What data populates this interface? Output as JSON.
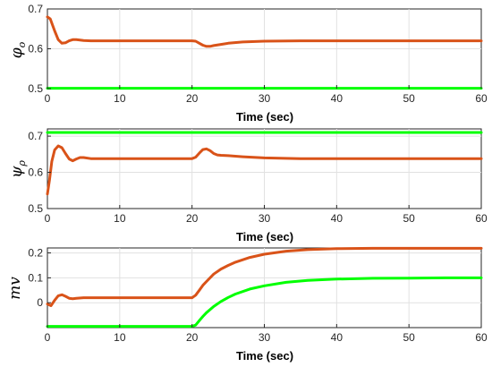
{
  "colors": {
    "orange": "#D95319",
    "green": "#00FF00"
  },
  "chart_data": [
    {
      "type": "line",
      "xlabel": "Time (sec)",
      "ylabel_main": "φ",
      "ylabel_sub": "o",
      "xlim": [
        0,
        60
      ],
      "ylim": [
        0.5,
        0.7
      ],
      "xticks": [
        "0",
        "10",
        "20",
        "30",
        "40",
        "50",
        "60"
      ],
      "yticks": [
        "0.5",
        "0.6",
        "0.7"
      ],
      "ytick_values": [
        0.5,
        0.6,
        0.7
      ],
      "grid": true,
      "series": [
        {
          "color": "#D95319",
          "x": [
            0,
            0.4,
            1,
            1.5,
            2,
            2.5,
            3,
            3.5,
            4,
            5,
            6,
            8,
            20,
            20.5,
            21,
            21.5,
            22,
            22.5,
            23,
            24,
            25,
            27,
            30,
            35,
            40,
            50,
            60
          ],
          "y": [
            0.68,
            0.675,
            0.645,
            0.623,
            0.614,
            0.615,
            0.62,
            0.623,
            0.623,
            0.621,
            0.62,
            0.62,
            0.62,
            0.619,
            0.614,
            0.609,
            0.606,
            0.606,
            0.608,
            0.611,
            0.614,
            0.617,
            0.619,
            0.62,
            0.62,
            0.62,
            0.62
          ]
        },
        {
          "color": "#00FF00",
          "x": [
            0,
            60
          ],
          "y": [
            0.5,
            0.5
          ]
        }
      ]
    },
    {
      "type": "line",
      "xlabel": "Time (sec)",
      "ylabel_main": "ψ",
      "ylabel_sub": "ρ",
      "xlim": [
        0,
        60
      ],
      "ylim": [
        0.5,
        0.72
      ],
      "xticks": [
        "0",
        "10",
        "20",
        "30",
        "40",
        "50",
        "60"
      ],
      "yticks": [
        "0.5",
        "0.6",
        "0.7"
      ],
      "ytick_values": [
        0.5,
        0.6,
        0.7
      ],
      "grid": true,
      "series": [
        {
          "color": "#D95319",
          "x": [
            0,
            0.3,
            0.6,
            1,
            1.5,
            2,
            2.5,
            3,
            3.5,
            4,
            4.5,
            5,
            6,
            8,
            10,
            20,
            20.5,
            21,
            21.5,
            22,
            22.5,
            23,
            23.5,
            24,
            25,
            27,
            30,
            35,
            40,
            50,
            60
          ],
          "y": [
            0.54,
            0.58,
            0.63,
            0.662,
            0.673,
            0.668,
            0.652,
            0.637,
            0.632,
            0.637,
            0.641,
            0.641,
            0.638,
            0.638,
            0.638,
            0.638,
            0.642,
            0.653,
            0.663,
            0.665,
            0.66,
            0.652,
            0.648,
            0.647,
            0.646,
            0.643,
            0.64,
            0.638,
            0.638,
            0.638,
            0.638
          ]
        },
        {
          "color": "#00FF00",
          "x": [
            0,
            60
          ],
          "y": [
            0.71,
            0.71
          ]
        }
      ]
    },
    {
      "type": "line",
      "xlabel": "Time (sec)",
      "ylabel_main": "mv",
      "ylabel_sub": "",
      "xlim": [
        0,
        60
      ],
      "ylim": [
        -0.1,
        0.22
      ],
      "xticks": [
        "0",
        "10",
        "20",
        "30",
        "40",
        "50",
        "60"
      ],
      "yticks": [
        "0",
        "0.1",
        "0.2"
      ],
      "ytick_values": [
        0,
        0.1,
        0.2
      ],
      "grid": true,
      "series": [
        {
          "color": "#D95319",
          "x": [
            0,
            0.5,
            1,
            1.5,
            2,
            2.5,
            3,
            3.5,
            4,
            5,
            6,
            8,
            10,
            15,
            20,
            20.5,
            21,
            21.5,
            22,
            23,
            24,
            25,
            26,
            28,
            30,
            33,
            36,
            40,
            45,
            50,
            55,
            60
          ],
          "y": [
            -0.005,
            -0.012,
            0.01,
            0.028,
            0.032,
            0.026,
            0.018,
            0.016,
            0.018,
            0.02,
            0.02,
            0.02,
            0.02,
            0.02,
            0.02,
            0.03,
            0.05,
            0.07,
            0.085,
            0.115,
            0.135,
            0.15,
            0.163,
            0.182,
            0.195,
            0.207,
            0.213,
            0.217,
            0.219,
            0.219,
            0.219,
            0.219
          ]
        },
        {
          "color": "#00FF00",
          "x": [
            0,
            20,
            20.5,
            21,
            21.5,
            22,
            23,
            24,
            25,
            26,
            28,
            30,
            33,
            36,
            40,
            45,
            50,
            55,
            60
          ],
          "y": [
            -0.095,
            -0.095,
            -0.09,
            -0.072,
            -0.055,
            -0.04,
            -0.015,
            0.005,
            0.021,
            0.035,
            0.055,
            0.068,
            0.082,
            0.09,
            0.095,
            0.098,
            0.099,
            0.1,
            0.1
          ]
        }
      ]
    }
  ]
}
